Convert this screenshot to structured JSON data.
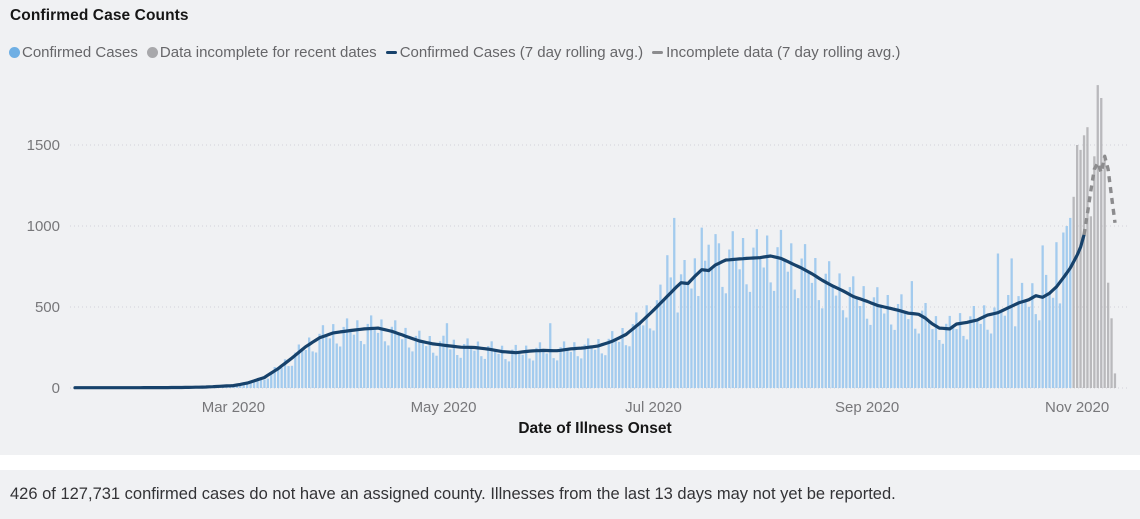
{
  "title": "Confirmed Case Counts",
  "legend": [
    {
      "id": "confirmed-cases",
      "label": "Confirmed Cases",
      "marker": "dot",
      "color": "#6fafe4"
    },
    {
      "id": "incomplete-recent",
      "label": "Data incomplete for recent dates",
      "marker": "dot",
      "color": "#a8a8ab"
    },
    {
      "id": "confirmed-avg",
      "label": "Confirmed Cases (7 day rolling avg.)",
      "marker": "dash",
      "color": "#17426b"
    },
    {
      "id": "incomplete-avg",
      "label": "Incomplete data (7 day rolling avg.)",
      "marker": "dash",
      "color": "#8c8c8e"
    }
  ],
  "footnote": "426 of 127,731 confirmed cases do not have an assigned county. Illnesses from the last 13 days may not yet be reported.",
  "chart_data": {
    "type": "bar+line",
    "title": "Confirmed Case Counts",
    "xlabel": "Date of Illness Onset",
    "ylabel": "",
    "grid": "dotted-horizontal",
    "legend_position": "top",
    "x_start_date": "2020-01-15",
    "x_days_total": 302,
    "x_ticks": [
      {
        "label": "Mar 2020",
        "day": 46
      },
      {
        "label": "May 2020",
        "day": 107
      },
      {
        "label": "Jul 2020",
        "day": 168
      },
      {
        "label": "Sep 2020",
        "day": 230
      },
      {
        "label": "Nov 2020",
        "day": 291
      }
    ],
    "y_ticks": [
      0,
      500,
      1000,
      1500
    ],
    "ylim": [
      0,
      1880
    ],
    "colors": {
      "confirmed_bar": "#a3cbee",
      "incomplete_bar": "#b9b9bc",
      "avg_line": "#17426b",
      "incomplete_avg_line": "#8c8c8e",
      "grid": "#d8d8dd"
    },
    "bars_start_day": 36,
    "incomplete_start_day": 290,
    "avg_end_day": 293,
    "weekly_pattern": [
      0.74,
      1.08,
      1.22,
      1.0,
      0.92,
      1.16,
      0.8
    ],
    "bar_overrides": {
      "108": 400,
      "138": 400,
      "172": 820,
      "174": 1050,
      "182": 990,
      "186": 950,
      "243": 660,
      "268": 830,
      "272": 800,
      "281": 880,
      "285": 900,
      "287": 960,
      "288": 1000,
      "289": 1050
    },
    "avg_anchors": [
      [
        0,
        2
      ],
      [
        17,
        2
      ],
      [
        31,
        3
      ],
      [
        38,
        6
      ],
      [
        46,
        15
      ],
      [
        50,
        30
      ],
      [
        55,
        65
      ],
      [
        59,
        120
      ],
      [
        63,
        185
      ],
      [
        67,
        255
      ],
      [
        71,
        310
      ],
      [
        75,
        340
      ],
      [
        80,
        355
      ],
      [
        84,
        365
      ],
      [
        88,
        370
      ],
      [
        92,
        350
      ],
      [
        96,
        320
      ],
      [
        100,
        290
      ],
      [
        104,
        272
      ],
      [
        108,
        262
      ],
      [
        112,
        252
      ],
      [
        116,
        250
      ],
      [
        120,
        240
      ],
      [
        124,
        225
      ],
      [
        128,
        218
      ],
      [
        132,
        228
      ],
      [
        136,
        232
      ],
      [
        140,
        230
      ],
      [
        144,
        242
      ],
      [
        148,
        248
      ],
      [
        152,
        260
      ],
      [
        156,
        288
      ],
      [
        160,
        330
      ],
      [
        164,
        400
      ],
      [
        168,
        480
      ],
      [
        171,
        545
      ],
      [
        174,
        610
      ],
      [
        176,
        650
      ],
      [
        178,
        645
      ],
      [
        180,
        690
      ],
      [
        182,
        730
      ],
      [
        184,
        725
      ],
      [
        186,
        760
      ],
      [
        189,
        790
      ],
      [
        192,
        795
      ],
      [
        195,
        800
      ],
      [
        199,
        805
      ],
      [
        202,
        815
      ],
      [
        205,
        800
      ],
      [
        208,
        770
      ],
      [
        211,
        740
      ],
      [
        214,
        705
      ],
      [
        217,
        665
      ],
      [
        220,
        630
      ],
      [
        223,
        600
      ],
      [
        226,
        565
      ],
      [
        230,
        535
      ],
      [
        233,
        510
      ],
      [
        236,
        495
      ],
      [
        239,
        480
      ],
      [
        242,
        462
      ],
      [
        245,
        455
      ],
      [
        247,
        430
      ],
      [
        249,
        395
      ],
      [
        251,
        370
      ],
      [
        254,
        365
      ],
      [
        256,
        395
      ],
      [
        259,
        405
      ],
      [
        262,
        420
      ],
      [
        265,
        450
      ],
      [
        268,
        465
      ],
      [
        271,
        495
      ],
      [
        274,
        525
      ],
      [
        277,
        545
      ],
      [
        279,
        570
      ],
      [
        281,
        560
      ],
      [
        283,
        585
      ],
      [
        285,
        625
      ],
      [
        287,
        680
      ],
      [
        289,
        740
      ],
      [
        291,
        820
      ],
      [
        292,
        870
      ],
      [
        293,
        945
      ]
    ],
    "incomplete_avg_anchors": [
      [
        293,
        945
      ],
      [
        294,
        1080
      ],
      [
        295,
        1220
      ],
      [
        296,
        1350
      ],
      [
        297,
        1390
      ],
      [
        298,
        1330
      ],
      [
        299,
        1430
      ],
      [
        300,
        1350
      ],
      [
        301,
        1180
      ],
      [
        302,
        1020
      ]
    ],
    "incomplete_bars": [
      1180,
      1500,
      1470,
      1560,
      1610,
      1060,
      1430,
      1870,
      1790,
      1440,
      650,
      430,
      90
    ]
  }
}
